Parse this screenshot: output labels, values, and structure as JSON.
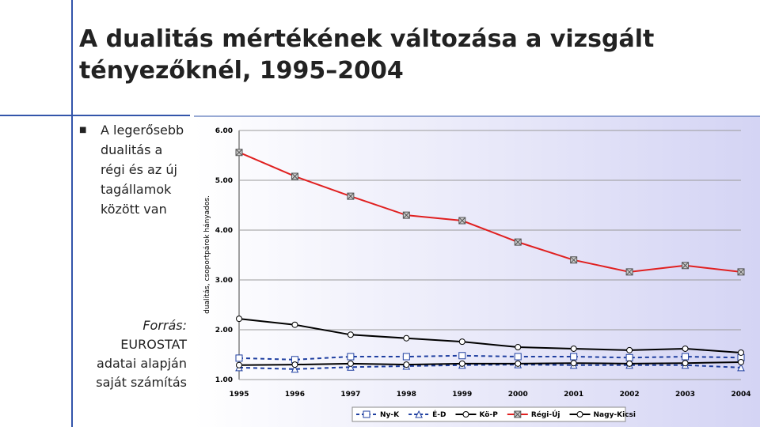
{
  "slide": {
    "title": "A dualitás mértékének változása a vizsgált tényezőknél, 1995–2004",
    "bullet": "A legerősebb dualitás a régi és az új tagállamok között van",
    "source_label": "Forrás:",
    "source_text": "EUROSTAT adatai alapján saját számítás"
  },
  "chart_data": {
    "type": "line",
    "y_label": "dualitás, csoportpárok hányados.",
    "categories": [
      "1995",
      "1996",
      "1997",
      "1998",
      "1999",
      "2000",
      "2001",
      "2002",
      "2003",
      "2004"
    ],
    "ylim": [
      1,
      6
    ],
    "yticks": [
      {
        "value": 1,
        "label": "1.00"
      },
      {
        "value": 2,
        "label": "2.00"
      },
      {
        "value": 3,
        "label": "3.00"
      },
      {
        "value": 4,
        "label": "4.00"
      },
      {
        "value": 5,
        "label": "5.00"
      },
      {
        "value": 6,
        "label": "6.00"
      }
    ],
    "grid": true,
    "legend": "bottom",
    "series": [
      {
        "name": "Ny-K",
        "color": "#1f3fa0",
        "marker": "square",
        "dash": true,
        "values": [
          1.43,
          1.4,
          1.46,
          1.46,
          1.48,
          1.46,
          1.46,
          1.44,
          1.46,
          1.44
        ]
      },
      {
        "name": "É-D",
        "color": "#1f3fa0",
        "marker": "triangle",
        "dash": true,
        "values": [
          1.24,
          1.21,
          1.25,
          1.27,
          1.29,
          1.3,
          1.29,
          1.29,
          1.29,
          1.24
        ]
      },
      {
        "name": "Kö-P",
        "color": "#000000",
        "marker": "circle",
        "dash": false,
        "values": [
          2.22,
          2.1,
          1.9,
          1.83,
          1.76,
          1.65,
          1.62,
          1.59,
          1.62,
          1.54
        ]
      },
      {
        "name": "Régi-Új",
        "color": "#e02020",
        "marker": "xbox",
        "dash": false,
        "values": [
          5.56,
          5.08,
          4.68,
          4.3,
          4.19,
          3.76,
          3.4,
          3.16,
          3.29,
          3.16
        ]
      },
      {
        "name": "Nagy-Kicsi",
        "color": "#000000",
        "marker": "circle",
        "dash": false,
        "values": [
          1.29,
          1.3,
          1.32,
          1.3,
          1.32,
          1.32,
          1.33,
          1.32,
          1.33,
          1.35
        ]
      }
    ]
  }
}
